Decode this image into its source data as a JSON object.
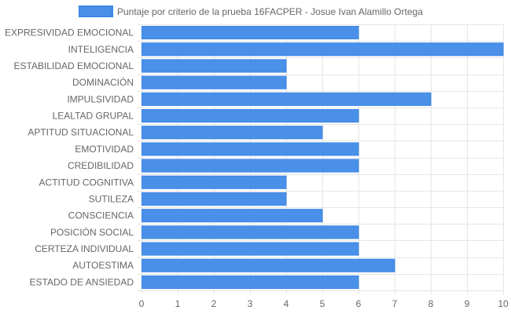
{
  "chart_data": {
    "type": "bar",
    "orientation": "horizontal",
    "title": "",
    "xlabel": "",
    "ylabel": "",
    "xlim": [
      0,
      10
    ],
    "x_ticks": [
      0,
      1,
      2,
      3,
      4,
      5,
      6,
      7,
      8,
      9,
      10
    ],
    "grid": true,
    "legend_position": "top",
    "bar_color": "#4a90e8",
    "bar_border_color": "#3a86e6",
    "categories": [
      "EXPRESIVIDAD EMOCIONAL",
      "INTELIGENCIA",
      "ESTABILIDAD EMOCIONAL",
      "DOMINACIÓN",
      "IMPULSIVIDAD",
      "LEALTAD GRUPAL",
      "APTITUD SITUACIONAL",
      "EMOTIVIDAD",
      "CREDIBILIDAD",
      "ACTITUD COGNITIVA",
      "SUTILEZA",
      "CONSCIENCIA",
      "POSICIÓN SOCIAL",
      "CERTEZA INDIVIDUAL",
      "AUTOESTIMA",
      "ESTADO DE ANSIEDAD"
    ],
    "series": [
      {
        "name": "Puntaje por criterio de la prueba 16FACPER - Josue Ivan Alamillo Ortega",
        "values": [
          6,
          10,
          4,
          4,
          8,
          6,
          5,
          6,
          6,
          4,
          4,
          5,
          6,
          6,
          7,
          6
        ]
      }
    ]
  }
}
